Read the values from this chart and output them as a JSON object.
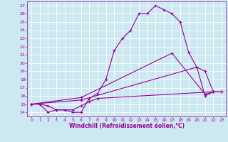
{
  "title": "",
  "xlabel": "Windchill (Refroidissement éolien,°C)",
  "ylabel": "",
  "background_color": "#cce8f0",
  "line_color": "#990099",
  "grid_color": "#ffffff",
  "xlim": [
    -0.5,
    23.5
  ],
  "ylim": [
    13.5,
    27.5
  ],
  "xticks": [
    0,
    1,
    2,
    3,
    4,
    5,
    6,
    7,
    8,
    9,
    10,
    11,
    12,
    13,
    14,
    15,
    16,
    17,
    18,
    19,
    20,
    21,
    22,
    23
  ],
  "yticks": [
    14,
    15,
    16,
    17,
    18,
    19,
    20,
    21,
    22,
    23,
    24,
    25,
    26,
    27
  ],
  "lines": [
    {
      "x": [
        0,
        1,
        2,
        3,
        4,
        5,
        6,
        7,
        8,
        9,
        10,
        11,
        12,
        13,
        14,
        15,
        16,
        17,
        18,
        19,
        20,
        21,
        22,
        23
      ],
      "y": [
        15,
        15,
        14,
        14.3,
        14.3,
        14,
        14,
        15.7,
        16.3,
        18,
        21.5,
        23,
        24,
        26,
        26,
        27,
        26.5,
        26,
        25,
        21.3,
        19.5,
        16,
        16.5,
        16.5
      ]
    },
    {
      "x": [
        0,
        1,
        2,
        3,
        4,
        5,
        6,
        7,
        8,
        22,
        23
      ],
      "y": [
        15,
        15,
        14.8,
        14.3,
        14.3,
        14.3,
        14.8,
        15.3,
        15.7,
        16.5,
        16.5
      ]
    },
    {
      "x": [
        0,
        6,
        20,
        21,
        22
      ],
      "y": [
        15,
        15.5,
        19.5,
        19.0,
        16.5
      ]
    },
    {
      "x": [
        0,
        6,
        17,
        21,
        22
      ],
      "y": [
        15,
        15.8,
        21.2,
        16.2,
        16.5
      ]
    }
  ],
  "marker": "+",
  "markersize": 3,
  "linewidth": 0.8,
  "tick_fontsize": 4.5,
  "xlabel_fontsize": 5.5
}
